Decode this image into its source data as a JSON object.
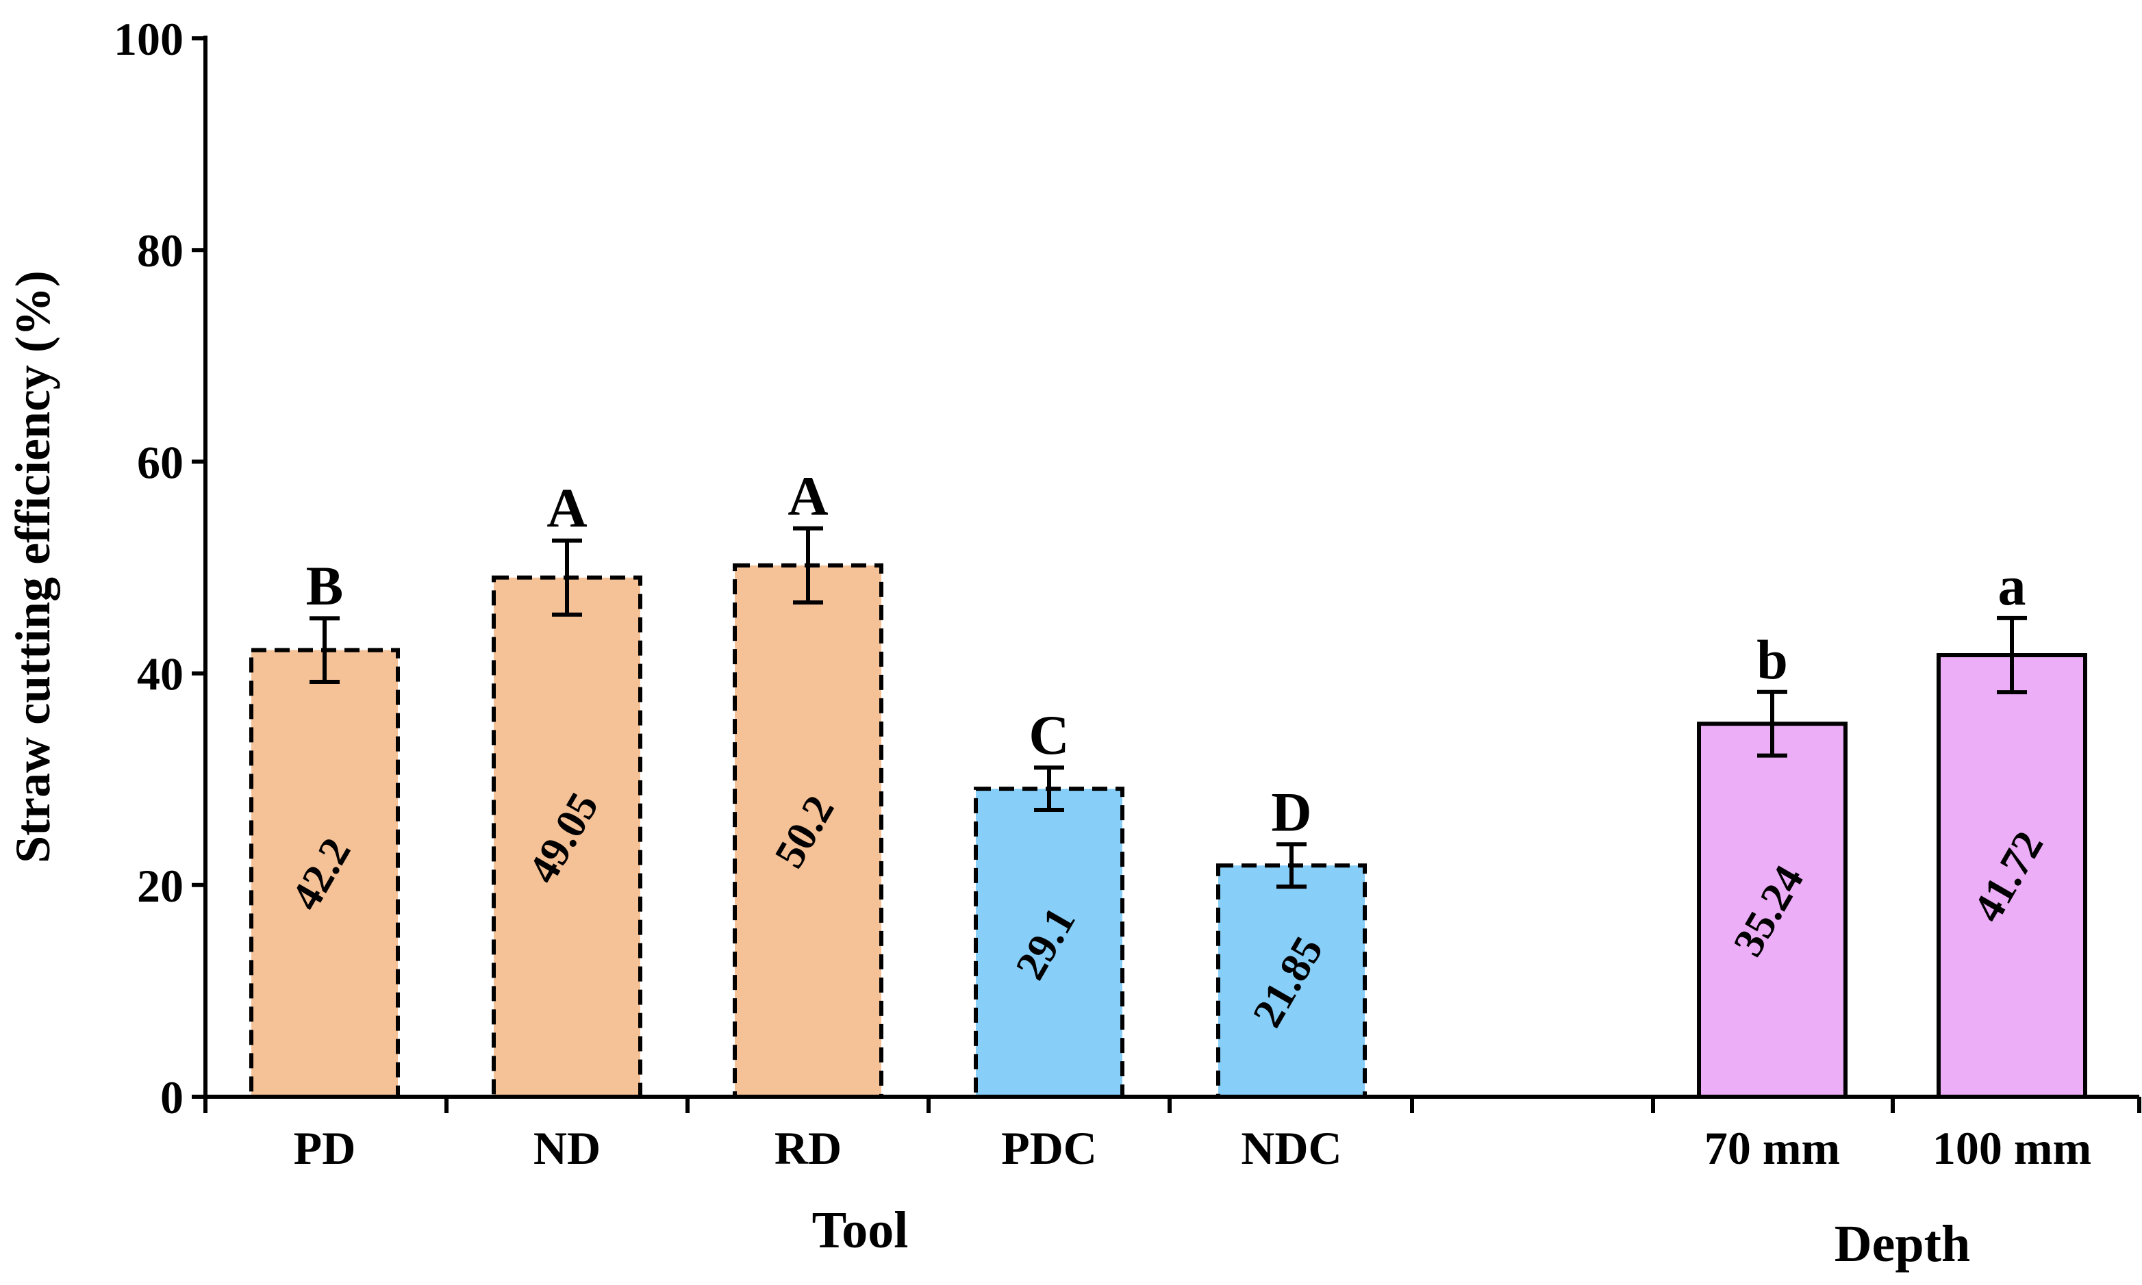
{
  "chart_data": {
    "type": "bar",
    "ylabel": "Straw cutting efficiency (%)",
    "ylim": [
      0,
      100
    ],
    "yticks": [
      0,
      20,
      40,
      60,
      80,
      100
    ],
    "groups": [
      {
        "name": "Tool",
        "categories": [
          "PD",
          "ND",
          "RD",
          "PDC",
          "NDC"
        ],
        "values": [
          42.2,
          49.05,
          50.2,
          29.1,
          21.85
        ],
        "value_labels": [
          "42.2",
          "49.05",
          "50.2",
          "29.1",
          "21.85"
        ],
        "errors": [
          3.0,
          3.5,
          3.5,
          2.0,
          2.0
        ],
        "significance": [
          "B",
          "A",
          "A",
          "C",
          "D"
        ],
        "colors": [
          "#F5C197",
          "#F5C197",
          "#F5C197",
          "#87CEF8",
          "#87CEF8"
        ],
        "border": "dashed"
      },
      {
        "name": "Depth",
        "categories": [
          "70 mm",
          "100 mm"
        ],
        "values": [
          35.24,
          41.72
        ],
        "value_labels": [
          "35.24",
          "41.72"
        ],
        "errors": [
          3.0,
          3.5
        ],
        "significance": [
          "b",
          "a"
        ],
        "colors": [
          "#EDAEF8",
          "#EDAEF8"
        ],
        "border": "solid"
      }
    ]
  }
}
